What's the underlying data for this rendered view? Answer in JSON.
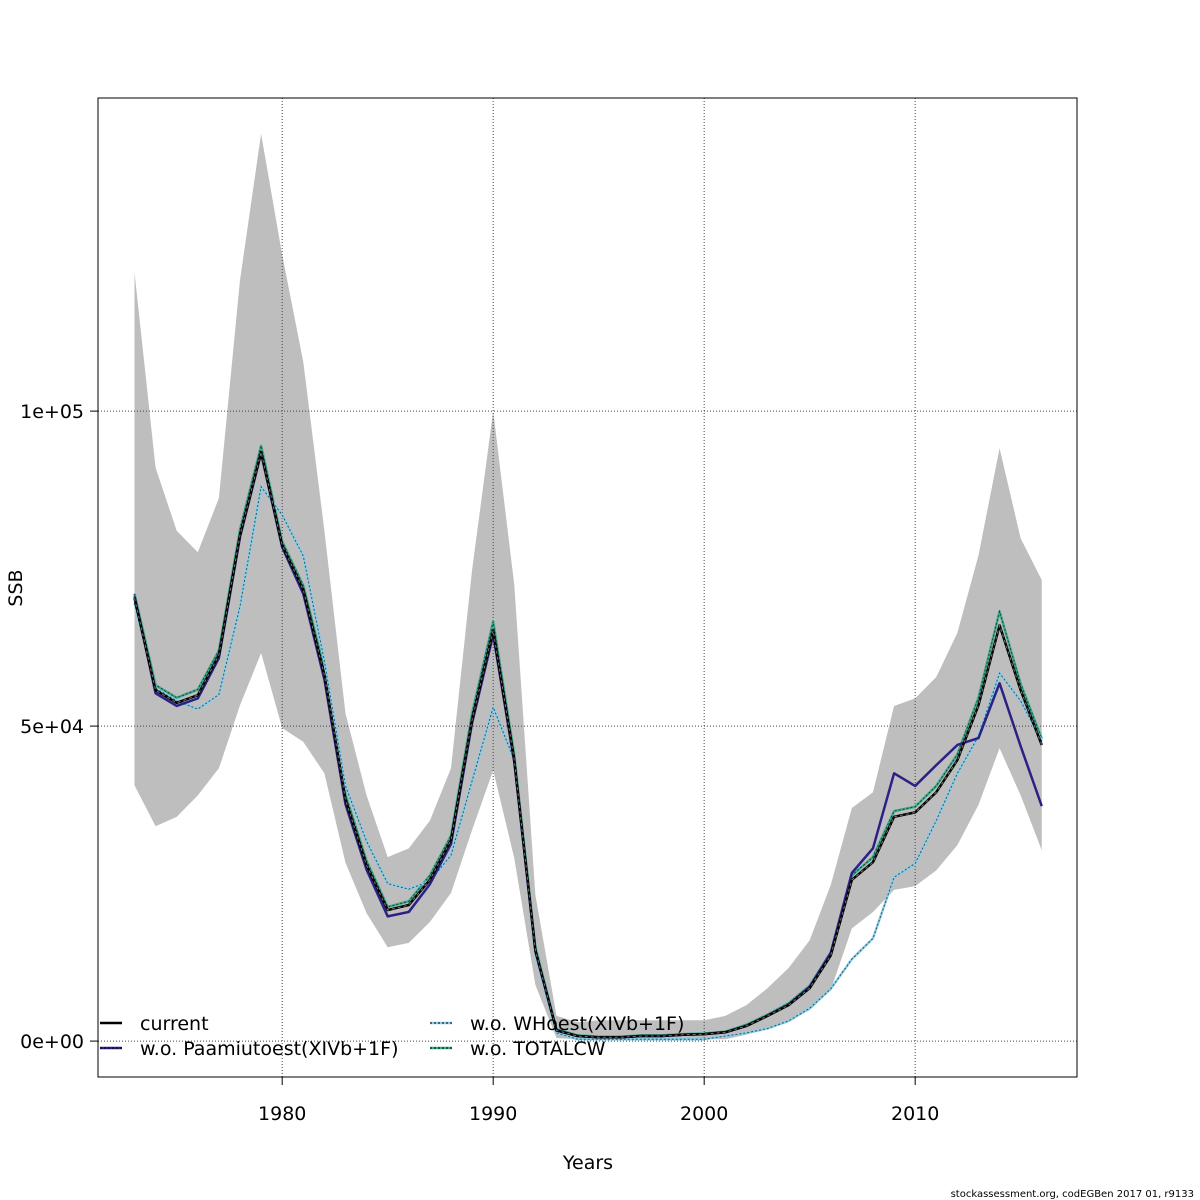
{
  "chart_data": {
    "type": "line",
    "title": "",
    "xlabel": "Years",
    "ylabel": "SSB",
    "xlim": [
      1971.27,
      2017.67
    ],
    "ylim": [
      -5700,
      149700
    ],
    "grid": true,
    "x_ticks": [
      1980,
      1990,
      2000,
      2010
    ],
    "x_tick_labels": [
      "1980",
      "1990",
      "2000",
      "2010"
    ],
    "y_ticks": [
      0,
      50000,
      100000
    ],
    "y_tick_labels": [
      "0e+00",
      "5e+04",
      "1e+05"
    ],
    "legend_placement": "bottom-left",
    "x": [
      1973,
      1974,
      1975,
      1976,
      1977,
      1978,
      1979,
      1980,
      1981,
      1982,
      1983,
      1984,
      1985,
      1986,
      1987,
      1988,
      1989,
      1990,
      1991,
      1992,
      1993,
      1994,
      1995,
      1996,
      1997,
      1998,
      1999,
      2000,
      2001,
      2002,
      2003,
      2004,
      2005,
      2006,
      2007,
      2008,
      2009,
      2010,
      2011,
      2012,
      2013,
      2014,
      2015,
      2016
    ],
    "confidence_band": {
      "color": "#BEBEBE",
      "upper": [
        122000,
        91000,
        81000,
        77600,
        86200,
        120800,
        144000,
        124800,
        107800,
        81000,
        52000,
        39000,
        29200,
        30600,
        35000,
        43300,
        74800,
        100000,
        72400,
        23200,
        4000,
        3000,
        3300,
        3300,
        3300,
        3300,
        3300,
        3300,
        4000,
        5700,
        8400,
        11600,
        16000,
        24800,
        37000,
        39500,
        53200,
        54400,
        57800,
        64800,
        77100,
        94100,
        79800,
        73200
      ],
      "lower": [
        40600,
        34100,
        35600,
        39000,
        43300,
        53300,
        61600,
        49700,
        47500,
        42500,
        28300,
        20300,
        14900,
        15600,
        18900,
        23500,
        33500,
        43000,
        29000,
        8900,
        500,
        300,
        300,
        300,
        300,
        300,
        300,
        300,
        300,
        1000,
        2000,
        3300,
        4900,
        8100,
        17900,
        20500,
        24000,
        24600,
        27100,
        31100,
        37500,
        46500,
        39000,
        30300
      ]
    },
    "series": [
      {
        "name": "current",
        "color": "#000000",
        "dashed": false,
        "values": [
          70300,
          55700,
          53700,
          54900,
          61300,
          80300,
          93500,
          78700,
          71600,
          58100,
          38300,
          27900,
          20800,
          21600,
          25600,
          31900,
          51000,
          65200,
          44600,
          14400,
          1700,
          800,
          600,
          600,
          800,
          800,
          1000,
          1100,
          1400,
          2400,
          4000,
          5700,
          8400,
          13600,
          25600,
          28400,
          35600,
          36300,
          39500,
          44600,
          53300,
          66000,
          55700,
          47000
        ]
      },
      {
        "name": "w.o. Paamiutoest(XIVb+1F)",
        "color": "#2B2185",
        "dashed": false,
        "values": [
          70600,
          55200,
          53200,
          54400,
          60800,
          80000,
          93300,
          78400,
          71000,
          57400,
          37600,
          27200,
          19800,
          20500,
          24900,
          31300,
          50500,
          64500,
          44300,
          14300,
          1700,
          800,
          600,
          600,
          800,
          800,
          1000,
          1100,
          1400,
          2400,
          4000,
          5800,
          8600,
          14000,
          26700,
          30600,
          42500,
          40500,
          43800,
          47000,
          48100,
          56800,
          46800,
          37300
        ]
      },
      {
        "name": "w.o. WHoest(XIVb+1F)",
        "color": "#87CEEB",
        "dashed": true,
        "values": [
          69500,
          56000,
          54000,
          52700,
          55000,
          69000,
          88000,
          83500,
          77000,
          60300,
          40500,
          31700,
          25000,
          24100,
          25400,
          29500,
          41300,
          53000,
          44600,
          13800,
          1300,
          300,
          300,
          300,
          300,
          300,
          300,
          300,
          800,
          1300,
          2000,
          3200,
          5200,
          8300,
          13000,
          16300,
          26000,
          28200,
          35000,
          42500,
          48400,
          58400,
          54000,
          47600
        ]
      },
      {
        "name": "w.o. TOTALCW",
        "color": "#3DAA8C",
        "dashed": true,
        "values": [
          71000,
          56500,
          54500,
          55800,
          62000,
          81200,
          94500,
          79300,
          72300,
          59000,
          39100,
          28600,
          21300,
          22200,
          26300,
          32600,
          52000,
          66600,
          45400,
          14900,
          1900,
          900,
          700,
          700,
          900,
          900,
          1100,
          1200,
          1500,
          2600,
          4200,
          6000,
          8800,
          14100,
          26300,
          29200,
          36500,
          37200,
          40500,
          45500,
          54500,
          68200,
          56700,
          48000
        ]
      }
    ]
  },
  "footer": "stockassessment.org, codEGBen 2017 01, r9133"
}
